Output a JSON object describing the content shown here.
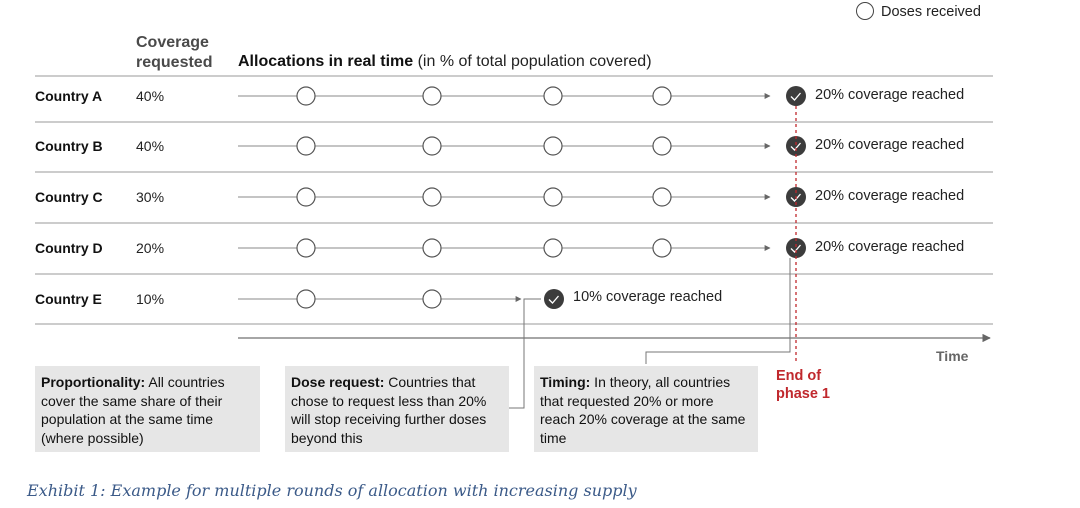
{
  "legend": {
    "label": "Doses received"
  },
  "header": {
    "coverage_requested": "Coverage requested",
    "allocations_bold": "Allocations in real time",
    "allocations_rest": " (in % of total population covered)"
  },
  "rows": [
    {
      "country": "Country A",
      "requested": "40%",
      "reached": "20% coverage reached",
      "open_rounds": 4
    },
    {
      "country": "Country B",
      "requested": "40%",
      "reached": "20% coverage reached",
      "open_rounds": 4
    },
    {
      "country": "Country C",
      "requested": "30%",
      "reached": "20% coverage reached",
      "open_rounds": 4
    },
    {
      "country": "Country D",
      "requested": "20%",
      "reached": "20% coverage reached",
      "open_rounds": 4
    },
    {
      "country": "Country E",
      "requested": "10%",
      "reached": "10% coverage reached",
      "open_rounds": 2
    }
  ],
  "axis": {
    "time_label": "Time"
  },
  "end_phase": "End of phase 1",
  "boxes": [
    {
      "title": "Proportionality:",
      "text": " All countries cover the same share of their population at the same time (where possible)"
    },
    {
      "title": "Dose request:",
      "text": " Countries that chose to request less than 20% will stop receiving further doses beyond this"
    },
    {
      "title": "Timing:",
      "text": " In theory, all countries that requested 20% or more reach 20% coverage at the same time"
    }
  ],
  "caption": "Exhibit 1: Example for multiple rounds of allocation with increasing supply",
  "colors": {
    "accent_red": "#c0282d",
    "filled_circle": "#3c3c3c",
    "box_bg": "#e6e6e6",
    "caption": "#3b5a88"
  }
}
